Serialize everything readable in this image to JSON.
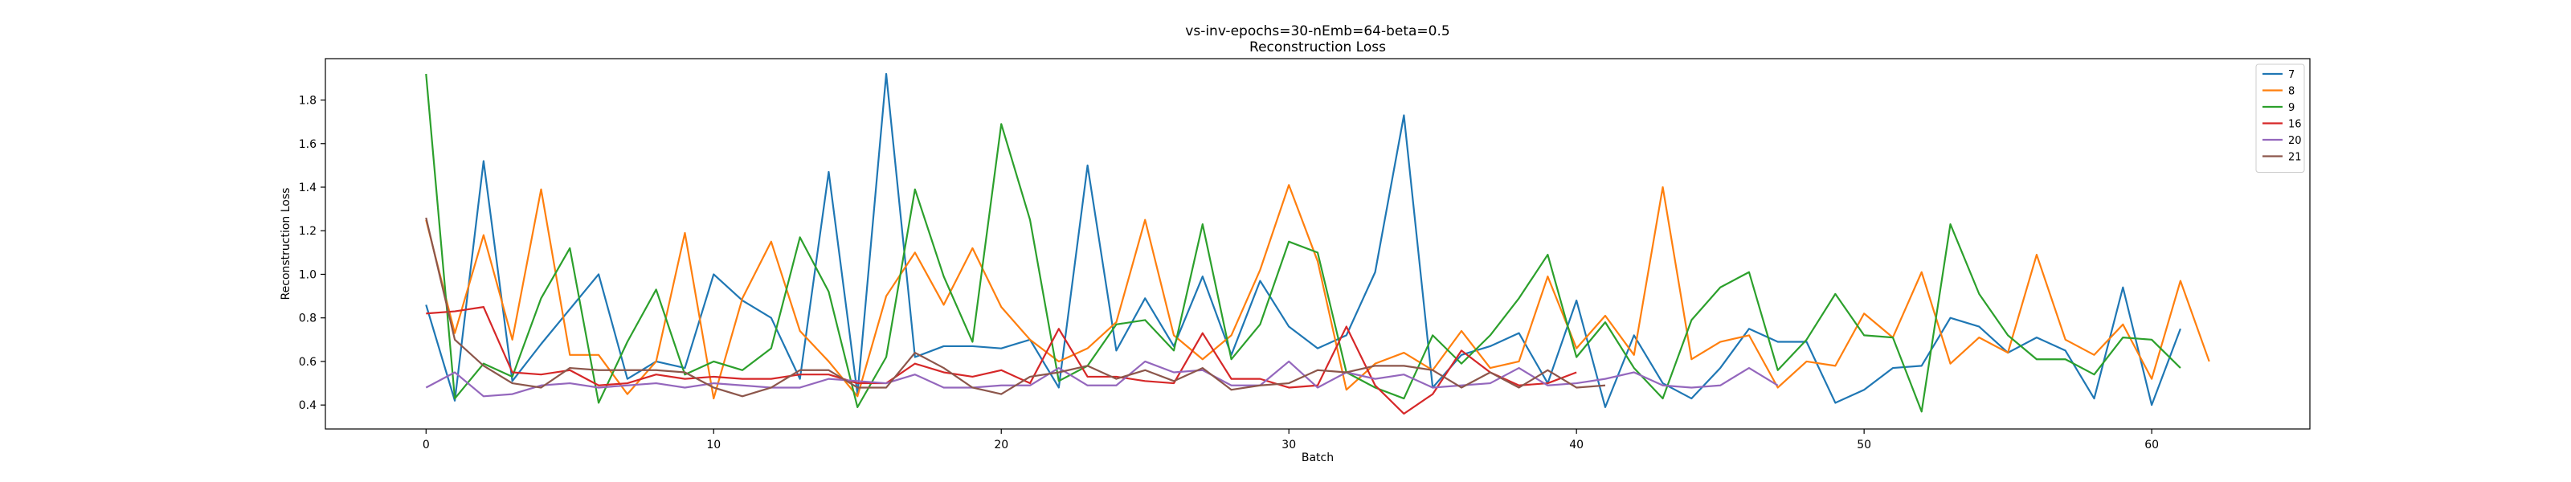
{
  "chart_data": {
    "type": "line",
    "title": "vs-inv-epochs=30-nEmb=64-beta=0.5",
    "subtitle": "Reconstruction Loss",
    "xlabel": "Batch",
    "ylabel": "Reconstruction Loss",
    "xlim": [
      -3.5,
      65.5
    ],
    "ylim": [
      0.29,
      1.99
    ],
    "xticks": [
      0,
      10,
      20,
      30,
      40,
      50,
      60
    ],
    "yticks": [
      0.4,
      0.6,
      0.8,
      1.0,
      1.2,
      1.4,
      1.6,
      1.8
    ],
    "xtick_labels": [
      "0",
      "10",
      "20",
      "30",
      "40",
      "50",
      "60"
    ],
    "ytick_labels": [
      "0.4",
      "0.6",
      "0.8",
      "1.0",
      "1.2",
      "1.4",
      "1.6",
      "1.8"
    ],
    "grid": false,
    "legend_position": "top-right",
    "series": [
      {
        "name": "7",
        "color": "#1f77b4",
        "values": [
          0.86,
          0.42,
          1.52,
          0.51,
          0.68,
          0.84,
          1.0,
          0.52,
          0.6,
          0.57,
          1.0,
          0.88,
          0.8,
          0.52,
          1.47,
          0.45,
          1.92,
          0.62,
          0.67,
          0.67,
          0.66,
          0.7,
          0.48,
          1.5,
          0.65,
          0.89,
          0.67,
          0.99,
          0.63,
          0.97,
          0.76,
          0.66,
          0.72,
          1.01,
          1.73,
          0.48,
          0.63,
          0.67,
          0.73,
          0.5,
          0.88,
          0.39,
          0.72,
          0.5,
          0.43,
          0.57,
          0.75,
          0.69,
          0.69,
          0.41,
          0.47,
          0.57,
          0.58,
          0.8,
          0.76,
          0.64,
          0.71,
          0.65,
          0.43,
          0.94,
          0.4,
          0.75
        ]
      },
      {
        "name": "8",
        "color": "#ff7f0e",
        "values": [
          1.25,
          0.73,
          1.18,
          0.7,
          1.39,
          0.63,
          0.63,
          0.45,
          0.6,
          1.19,
          0.43,
          0.89,
          1.15,
          0.74,
          0.6,
          0.44,
          0.9,
          1.1,
          0.86,
          1.12,
          0.85,
          0.7,
          0.6,
          0.66,
          0.78,
          1.25,
          0.72,
          0.61,
          0.72,
          1.02,
          1.41,
          1.06,
          0.47,
          0.59,
          0.64,
          0.56,
          0.74,
          0.57,
          0.6,
          0.99,
          0.66,
          0.81,
          0.63,
          1.4,
          0.61,
          0.69,
          0.72,
          0.48,
          0.6,
          0.58,
          0.82,
          0.71,
          1.01,
          0.59,
          0.71,
          0.64,
          1.09,
          0.7,
          0.63,
          0.77,
          0.52,
          0.97,
          0.6
        ]
      },
      {
        "name": "9",
        "color": "#2ca02c",
        "values": [
          1.92,
          0.43,
          0.59,
          0.53,
          0.89,
          1.12,
          0.41,
          0.69,
          0.93,
          0.54,
          0.6,
          0.56,
          0.66,
          1.17,
          0.92,
          0.39,
          0.62,
          1.39,
          0.99,
          0.69,
          1.69,
          1.25,
          0.51,
          0.58,
          0.77,
          0.79,
          0.65,
          1.23,
          0.61,
          0.77,
          1.15,
          1.1,
          0.55,
          0.48,
          0.43,
          0.72,
          0.59,
          0.72,
          0.89,
          1.09,
          0.62,
          0.78,
          0.57,
          0.43,
          0.79,
          0.94,
          1.01,
          0.56,
          0.7,
          0.91,
          0.72,
          0.71,
          0.37,
          1.23,
          0.91,
          0.72,
          0.61,
          0.61,
          0.54,
          0.71,
          0.7,
          0.57
        ]
      },
      {
        "name": "16",
        "color": "#d62728",
        "values": [
          0.82,
          0.83,
          0.85,
          0.55,
          0.54,
          0.56,
          0.49,
          0.5,
          0.54,
          0.52,
          0.53,
          0.52,
          0.52,
          0.54,
          0.54,
          0.5,
          0.5,
          0.59,
          0.55,
          0.53,
          0.56,
          0.5,
          0.75,
          0.53,
          0.53,
          0.51,
          0.5,
          0.73,
          0.52,
          0.52,
          0.48,
          0.49,
          0.76,
          0.49,
          0.36,
          0.45,
          0.65,
          0.55,
          0.49,
          0.5,
          0.55
        ]
      },
      {
        "name": "20",
        "color": "#9467bd",
        "values": [
          0.48,
          0.55,
          0.44,
          0.45,
          0.49,
          0.5,
          0.48,
          0.49,
          0.5,
          0.48,
          0.5,
          0.49,
          0.48,
          0.48,
          0.52,
          0.51,
          0.5,
          0.54,
          0.48,
          0.48,
          0.49,
          0.49,
          0.57,
          0.49,
          0.49,
          0.6,
          0.55,
          0.56,
          0.49,
          0.49,
          0.6,
          0.48,
          0.55,
          0.52,
          0.54,
          0.48,
          0.49,
          0.5,
          0.57,
          0.49,
          0.5,
          0.52,
          0.55,
          0.49,
          0.48,
          0.49,
          0.57,
          0.49
        ]
      },
      {
        "name": "21",
        "color": "#8c564b",
        "values": [
          1.26,
          0.7,
          0.58,
          0.5,
          0.48,
          0.57,
          0.56,
          0.56,
          0.56,
          0.55,
          0.48,
          0.44,
          0.48,
          0.56,
          0.56,
          0.48,
          0.48,
          0.64,
          0.57,
          0.48,
          0.45,
          0.53,
          0.55,
          0.58,
          0.52,
          0.56,
          0.51,
          0.57,
          0.47,
          0.49,
          0.5,
          0.56,
          0.55,
          0.58,
          0.58,
          0.56,
          0.48,
          0.55,
          0.48,
          0.56,
          0.48,
          0.49
        ]
      }
    ]
  }
}
